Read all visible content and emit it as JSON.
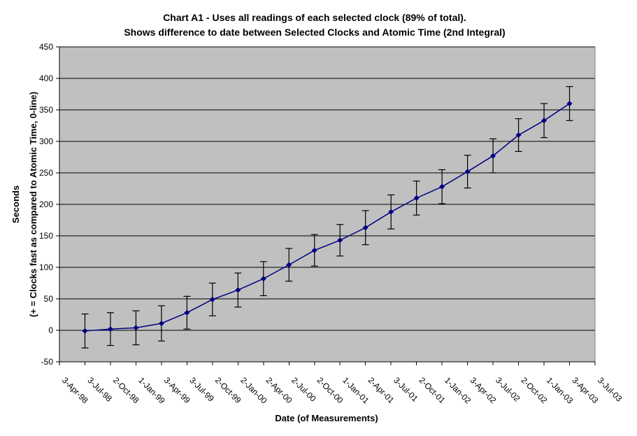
{
  "chart_data": {
    "type": "line",
    "title_line1": "Chart A1 - Uses all readings of each selected clock (89% of total).",
    "title_line2": "Shows difference to date between Selected Clocks and Atomic Time (2nd Integral)",
    "xlabel": "Date (of Measurements)",
    "ylabel_line1": "Seconds",
    "ylabel_line2": "(+ = Clocks fast as compared to Atomic Time, 0-line)",
    "ylim": [
      -50,
      450
    ],
    "ytick_step": 50,
    "y_tick_labels": [
      "-50",
      "0",
      "50",
      "100",
      "150",
      "200",
      "250",
      "300",
      "350",
      "400",
      "450"
    ],
    "grid": "horizontal",
    "legend": "none",
    "colors": {
      "plot_background": "#c0c0c0",
      "line": "#000080",
      "marker": "#000080",
      "error_bar": "#000000",
      "gridline": "#000000",
      "axis": "#000000",
      "plot_right_border": "#808080"
    },
    "marker": "diamond",
    "x_tick_labels": [
      "3-Apr-98",
      "3-Jul-98",
      "2-Oct-98",
      "1-Jan-99",
      "3-Apr-99",
      "3-Jul-99",
      "2-Oct-99",
      "2-Jan-00",
      "2-Apr-00",
      "2-Jul-00",
      "2-Oct-00",
      "1-Jan-01",
      "2-Apr-01",
      "3-Jul-01",
      "2-Oct-01",
      "1-Jan-02",
      "3-Apr-02",
      "3-Jul-02",
      "2-Oct-02",
      "1-Jan-03",
      "3-Apr-03",
      "3-Jul-03"
    ],
    "series": [
      {
        "name": "Selected Clocks minus Atomic Time (2nd Integral)",
        "points": [
          {
            "date": "3-Apr-98",
            "seconds": -1,
            "error": 27
          },
          {
            "date": "3-Jul-98",
            "seconds": 2,
            "error": 26
          },
          {
            "date": "2-Oct-98",
            "seconds": 4,
            "error": 27
          },
          {
            "date": "1-Jan-99",
            "seconds": 11,
            "error": 28
          },
          {
            "date": "3-Apr-99",
            "seconds": 28,
            "error": 26
          },
          {
            "date": "3-Jul-99",
            "seconds": 49,
            "error": 26
          },
          {
            "date": "2-Oct-99",
            "seconds": 64,
            "error": 27
          },
          {
            "date": "2-Jan-00",
            "seconds": 82,
            "error": 27
          },
          {
            "date": "2-Apr-00",
            "seconds": 104,
            "error": 26
          },
          {
            "date": "2-Jul-00",
            "seconds": 127,
            "error": 25
          },
          {
            "date": "2-Oct-00",
            "seconds": 143,
            "error": 25
          },
          {
            "date": "1-Jan-01",
            "seconds": 163,
            "error": 27
          },
          {
            "date": "2-Apr-01",
            "seconds": 188,
            "error": 27
          },
          {
            "date": "3-Jul-01",
            "seconds": 210,
            "error": 27
          },
          {
            "date": "2-Oct-01",
            "seconds": 228,
            "error": 27
          },
          {
            "date": "1-Jan-02",
            "seconds": 252,
            "error": 26
          },
          {
            "date": "3-Apr-02",
            "seconds": 277,
            "error": 27
          },
          {
            "date": "3-Jul-02",
            "seconds": 310,
            "error": 26
          },
          {
            "date": "2-Oct-02",
            "seconds": 333,
            "error": 27
          },
          {
            "date": "1-Jan-03",
            "seconds": 360,
            "error": 27
          }
        ]
      }
    ]
  }
}
